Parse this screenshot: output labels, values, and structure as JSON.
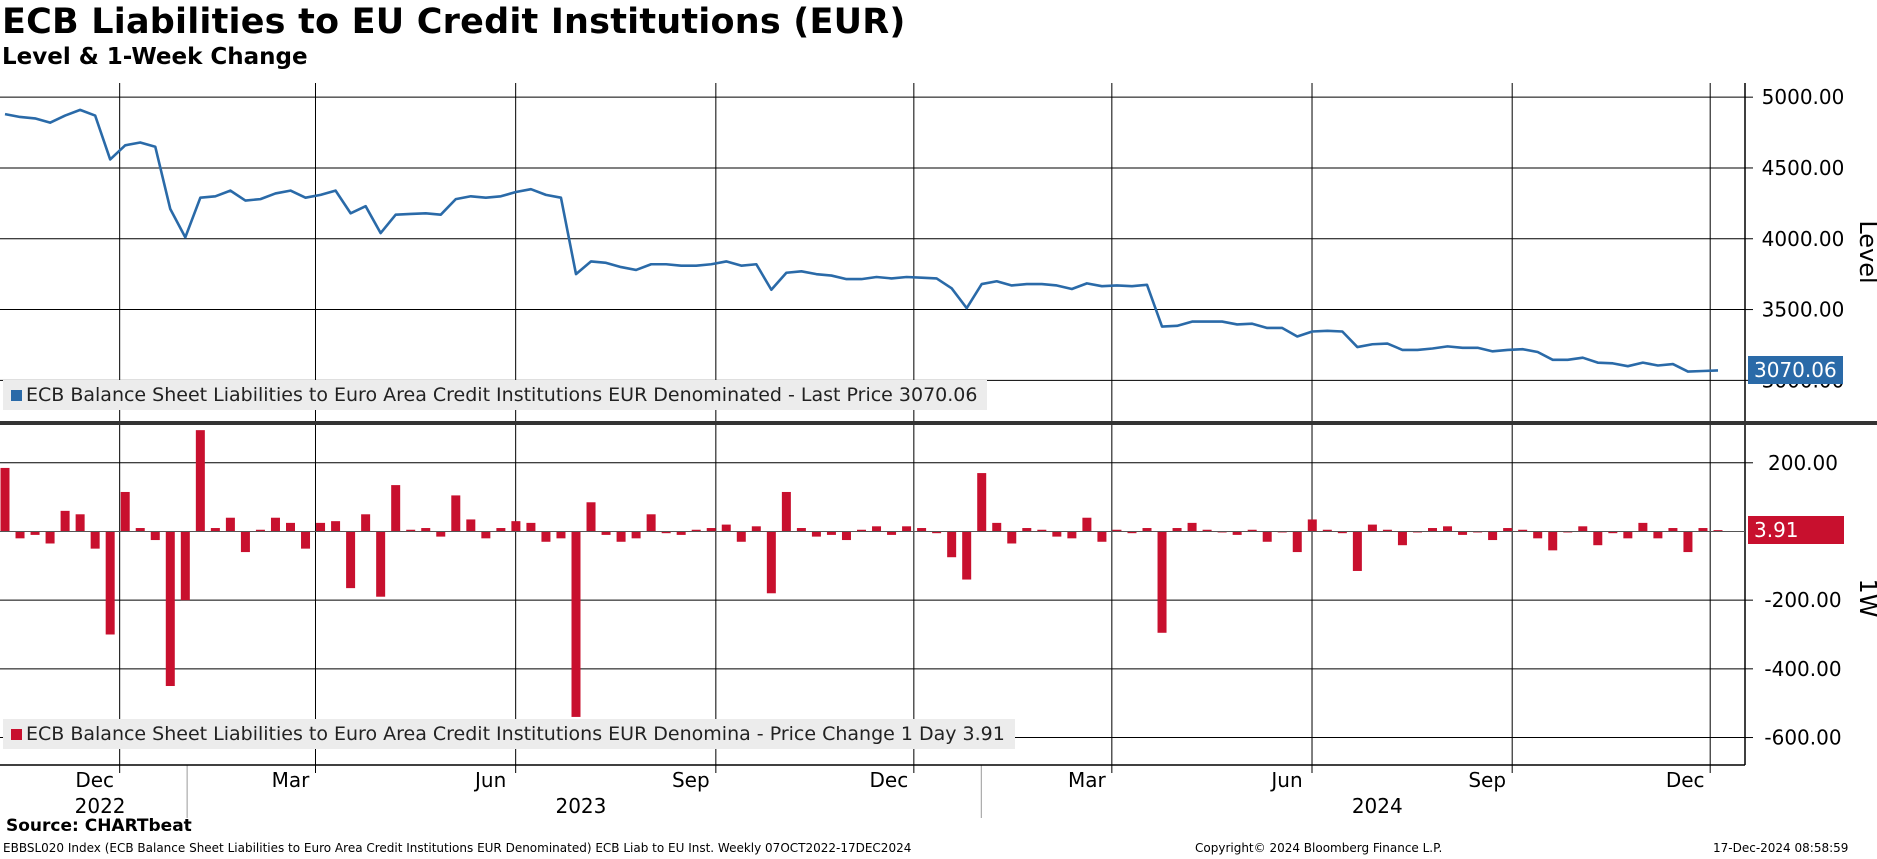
{
  "header": {
    "title": "ECB Liabilities to EU Credit Institutions (EUR)",
    "subtitle": "Level & 1-Week Change"
  },
  "footer": {
    "source": "Source: CHARTbeat",
    "left_note": "EBBSL020 Index (ECB Balance Sheet Liabilities to Euro Area Credit Institutions EUR Denominated) ECB Liab to EU Inst.  Weekly 07OCT2022-17DEC2024",
    "copyright": "Copyright© 2024 Bloomberg Finance L.P.",
    "timestamp": "17-Dec-2024 08:58:59"
  },
  "colors": {
    "level_line": "#2a6aa8",
    "change_bars": "#c8102e",
    "grid": "#000000"
  },
  "chart_data": [
    {
      "type": "line",
      "panel": "top",
      "ylabel": "Level",
      "ylim": [
        2720,
        5100
      ],
      "yticks": [
        3000,
        3500,
        4000,
        4500,
        5000
      ],
      "ytick_labels": [
        "3000.00",
        "3500.00",
        "4000.00",
        "4500.00",
        "5000.00"
      ],
      "grid": true,
      "legend": "bottom-left",
      "legend_label": "ECB Balance Sheet Liabilities to Euro Area Credit Institutions EUR Denominated - Last Price 3070.06",
      "last_value_label": "3070.06",
      "x_start": "2022-10-07",
      "x_end": "2024-12-17",
      "series": [
        {
          "name": "ECB Balance Sheet Liabilities to Euro Area Credit Institutions EUR Denominated",
          "values": [
            4880,
            4860,
            4850,
            4820,
            4870,
            4910,
            4870,
            4560,
            4660,
            4680,
            4650,
            4210,
            4010,
            4290,
            4300,
            4340,
            4270,
            4280,
            4320,
            4340,
            4290,
            4310,
            4340,
            4180,
            4230,
            4040,
            4170,
            4175,
            4180,
            4170,
            4280,
            4300,
            4290,
            4300,
            4330,
            4350,
            4310,
            4290,
            3750,
            3840,
            3830,
            3800,
            3780,
            3820,
            3820,
            3810,
            3810,
            3820,
            3840,
            3810,
            3820,
            3640,
            3760,
            3770,
            3750,
            3740,
            3715,
            3715,
            3730,
            3720,
            3730,
            3725,
            3720,
            3650,
            3510,
            3680,
            3700,
            3670,
            3680,
            3680,
            3670,
            3645,
            3685,
            3665,
            3670,
            3665,
            3675,
            3380,
            3385,
            3415,
            3415,
            3415,
            3395,
            3400,
            3370,
            3370,
            3310,
            3345,
            3350,
            3345,
            3235,
            3255,
            3260,
            3215,
            3215,
            3225,
            3240,
            3230,
            3230,
            3205,
            3215,
            3220,
            3200,
            3145,
            3145,
            3160,
            3125,
            3120,
            3100,
            3125,
            3105,
            3115,
            3062,
            3066,
            3070.06
          ]
        }
      ]
    },
    {
      "type": "bar",
      "panel": "bottom",
      "ylabel": "1W",
      "ylim": [
        -680,
        310
      ],
      "yticks": [
        -600,
        -400,
        -200,
        200
      ],
      "ytick_labels": [
        "-600.00",
        "-400.00",
        "-200.00",
        "200.00"
      ],
      "grid": true,
      "legend": "bottom-left",
      "legend_label": "ECB Balance Sheet Liabilities to Euro Area Credit Institutions EUR Denomina - Price Change 1 Day 3.91",
      "last_value_label": "3.91",
      "series": [
        {
          "name": "ECB Balance Sheet Liabilities to Euro Area Credit Institutions EUR Denomina - Price Change 1 Day",
          "values": [
            185,
            -20,
            -10,
            -35,
            60,
            50,
            -50,
            -300,
            115,
            10,
            -25,
            -450,
            -200,
            295,
            10,
            40,
            -60,
            5,
            40,
            25,
            -50,
            25,
            30,
            -165,
            50,
            -190,
            135,
            5,
            10,
            -15,
            105,
            35,
            -20,
            10,
            30,
            25,
            -30,
            -20,
            -540,
            85,
            -10,
            -30,
            -20,
            50,
            -5,
            -10,
            5,
            10,
            20,
            -30,
            15,
            -180,
            115,
            10,
            -15,
            -10,
            -25,
            5,
            15,
            -10,
            15,
            10,
            -5,
            -75,
            -140,
            170,
            25,
            -35,
            10,
            5,
            -15,
            -20,
            40,
            -30,
            5,
            -5,
            10,
            -295,
            10,
            25,
            5,
            0,
            -10,
            5,
            -30,
            0,
            -60,
            35,
            5,
            -5,
            -115,
            20,
            5,
            -40,
            0,
            10,
            15,
            -10,
            0,
            -25,
            10,
            5,
            -20,
            -55,
            0,
            15,
            -40,
            -5,
            -20,
            25,
            -20,
            10,
            -60,
            10,
            3.91
          ]
        }
      ]
    }
  ],
  "x_axis": {
    "month_ticks": [
      {
        "label": "Dec",
        "date": "2022-12-01"
      },
      {
        "label": "Mar",
        "date": "2023-03-01"
      },
      {
        "label": "Jun",
        "date": "2023-06-01"
      },
      {
        "label": "Sep",
        "date": "2023-09-01"
      },
      {
        "label": "Dec",
        "date": "2023-12-01"
      },
      {
        "label": "Mar",
        "date": "2024-03-01"
      },
      {
        "label": "Jun",
        "date": "2024-06-01"
      },
      {
        "label": "Sep",
        "date": "2024-09-01"
      },
      {
        "label": "Dec",
        "date": "2024-12-01"
      }
    ],
    "year_labels": [
      {
        "label": "2022",
        "date": "2022-11-22"
      },
      {
        "label": "2023",
        "date": "2023-07-01"
      },
      {
        "label": "2024",
        "date": "2024-07-01"
      }
    ],
    "year_boundaries": [
      "2023-01-01",
      "2024-01-01"
    ]
  }
}
